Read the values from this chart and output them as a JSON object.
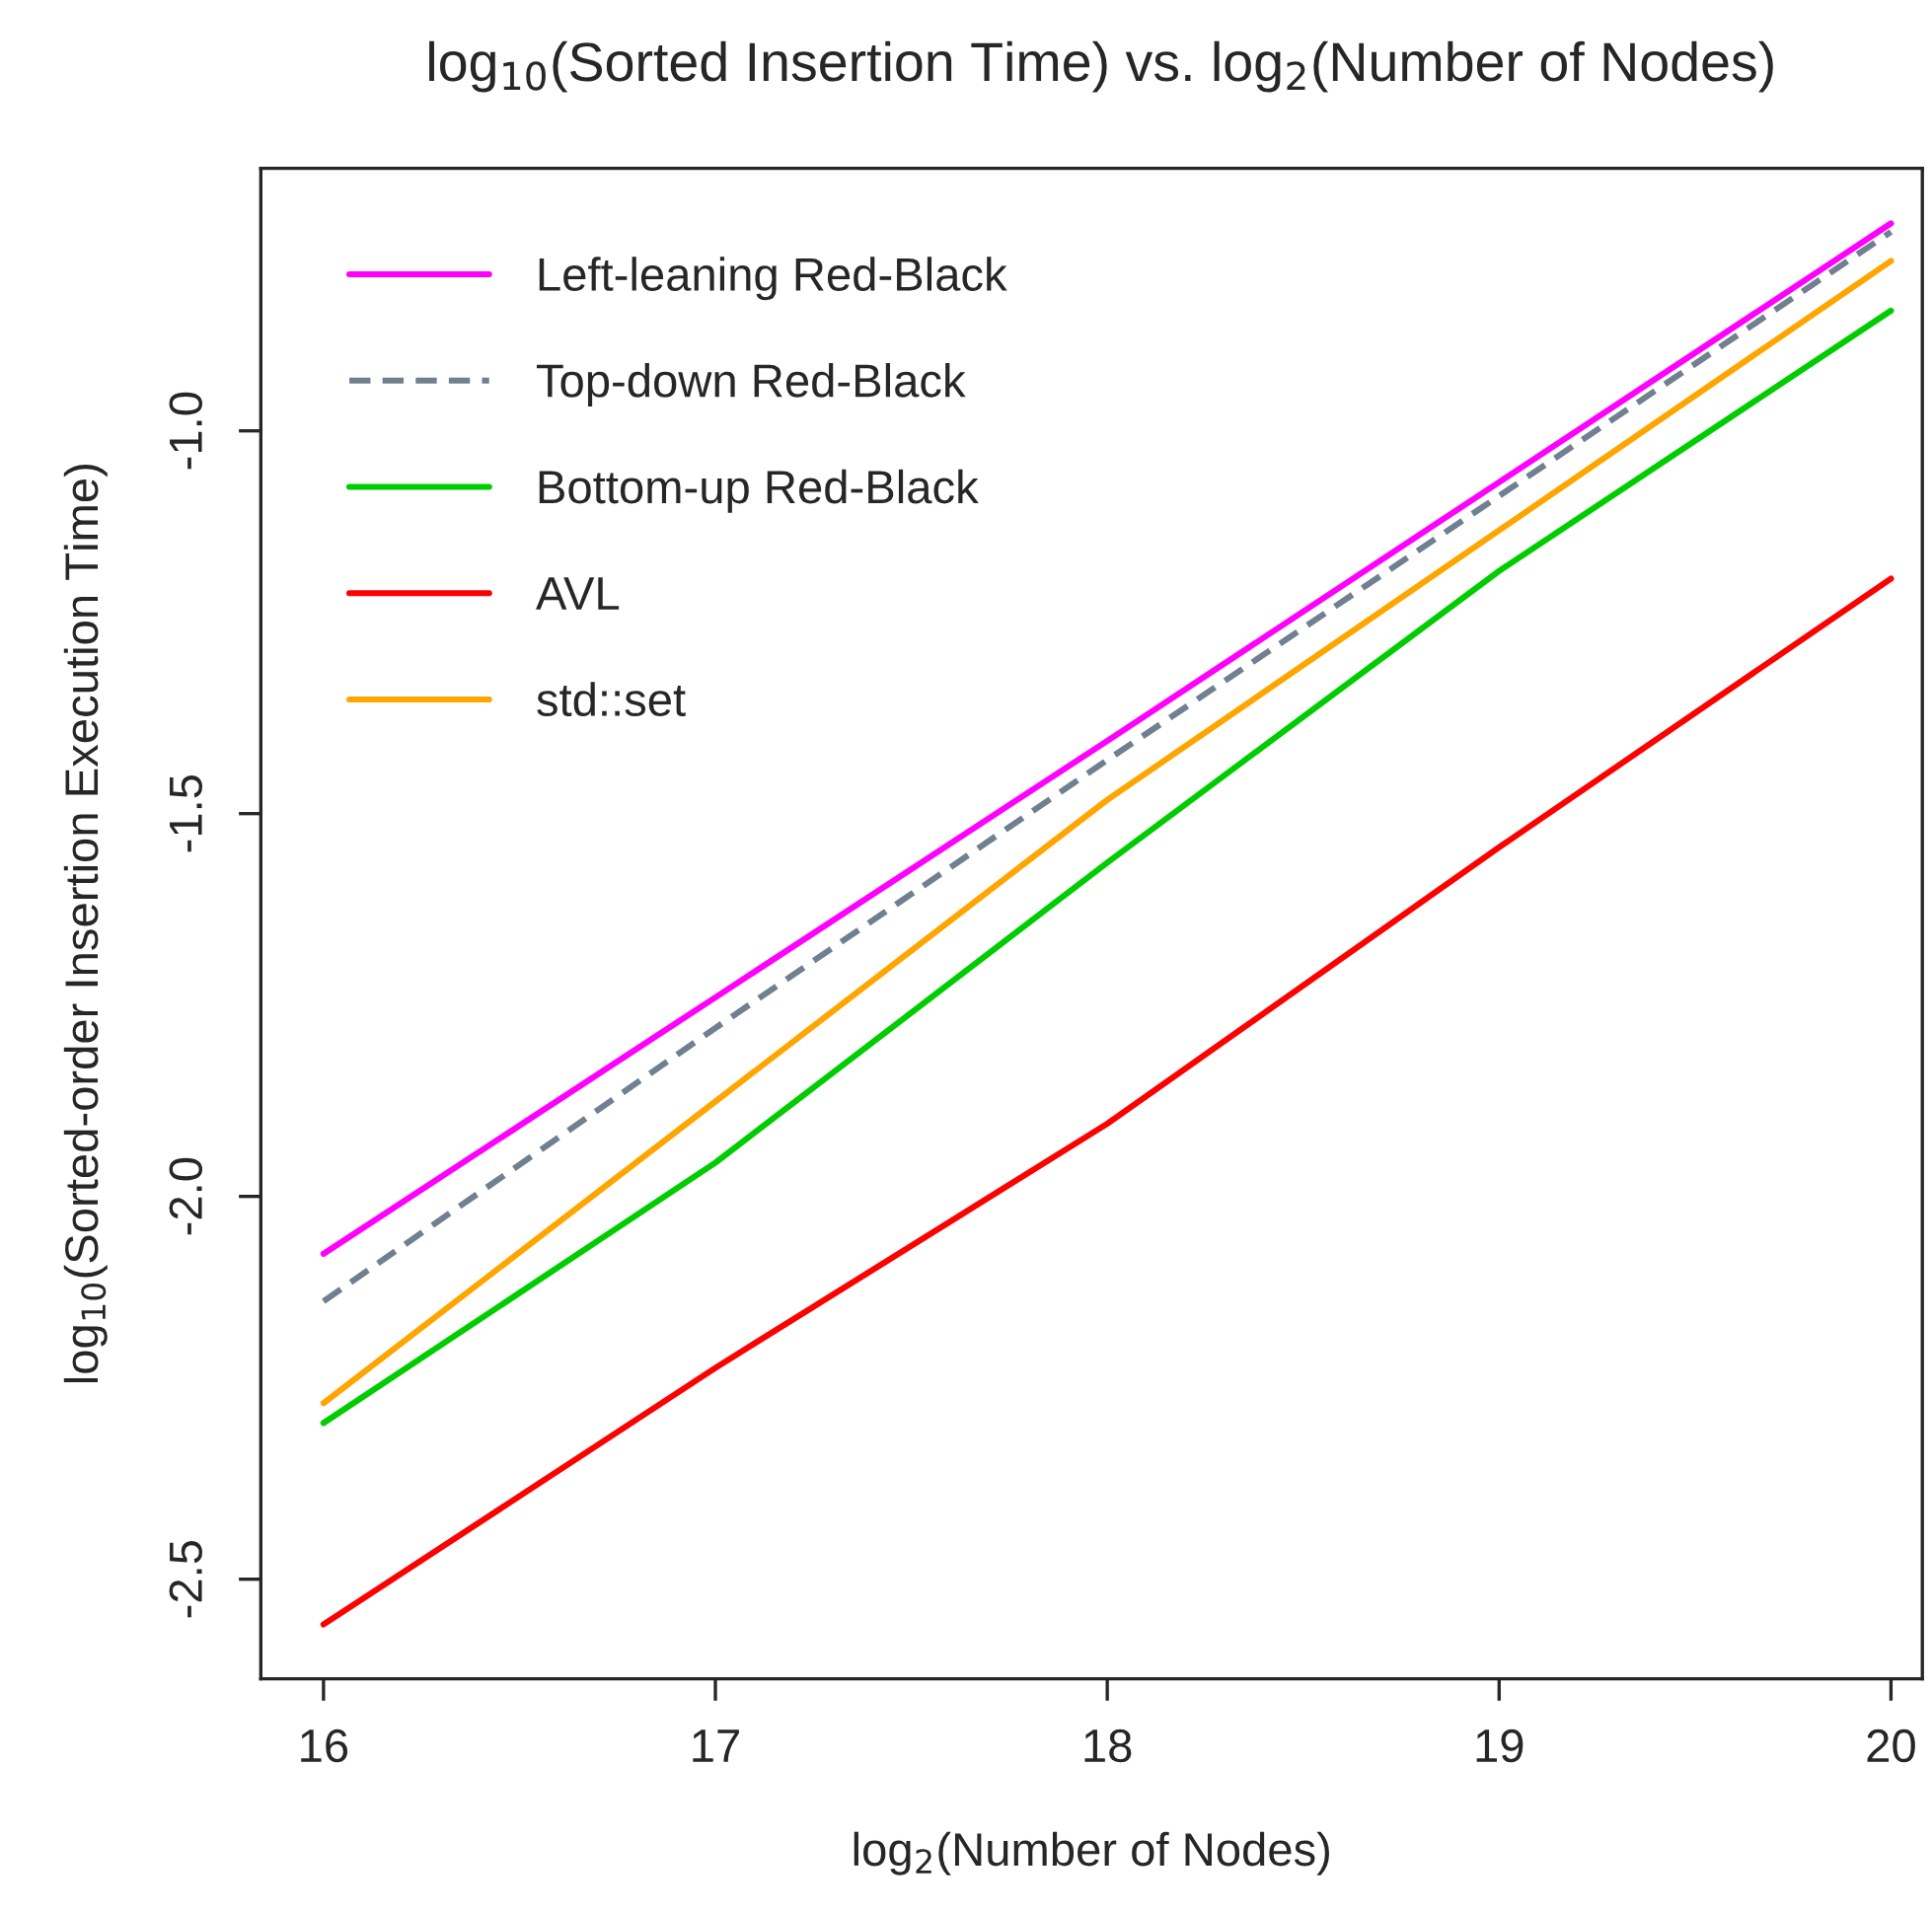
{
  "chart_data": {
    "type": "line",
    "title": "log$_{10}$(Sorted Insertion Time) vs. log$_{2}$(Number of Nodes)",
    "xlabel": "log$_{2}$(Number of Nodes)",
    "ylabel": "log$_{10}$(Sorted-order Insertion Execution Time)",
    "x": [
      16,
      17,
      18,
      19,
      20
    ],
    "series": [
      {
        "name": "Left-leaning Red-Black",
        "color": "#ff00ff",
        "line_style": "solid",
        "values": [
          -2.075,
          -1.74,
          -1.405,
          -1.067,
          -0.729
        ]
      },
      {
        "name": "Top-down Red-Black",
        "color": "#708090",
        "line_style": "dashed",
        "values": [
          -2.137,
          -1.78,
          -1.43,
          -1.085,
          -0.74
        ]
      },
      {
        "name": "Bottom-up Red-Black",
        "color": "#00cd00",
        "line_style": "solid",
        "values": [
          -2.296,
          -1.956,
          -1.564,
          -1.183,
          -0.843
        ]
      },
      {
        "name": "AVL",
        "color": "#ff0000",
        "line_style": "solid",
        "values": [
          -2.559,
          -2.224,
          -1.905,
          -1.544,
          -1.193
        ]
      },
      {
        "name": "std::set",
        "color": "#ffa500",
        "line_style": "solid",
        "values": [
          -2.27,
          -1.876,
          -1.482,
          -1.13,
          -0.778
        ]
      }
    ],
    "xlim": [
      15.84,
      20.08
    ],
    "ylim": [
      -2.63,
      -0.657
    ],
    "xticks": [
      16,
      17,
      18,
      19,
      20
    ],
    "yticks": [
      -2.5,
      {
        "value": -2,
        "label": "-2.0"
      },
      -1.5,
      {
        "value": -1,
        "label": "-1.0"
      }
    ],
    "grid": false,
    "legend": "top left",
    "marker": "none"
  }
}
